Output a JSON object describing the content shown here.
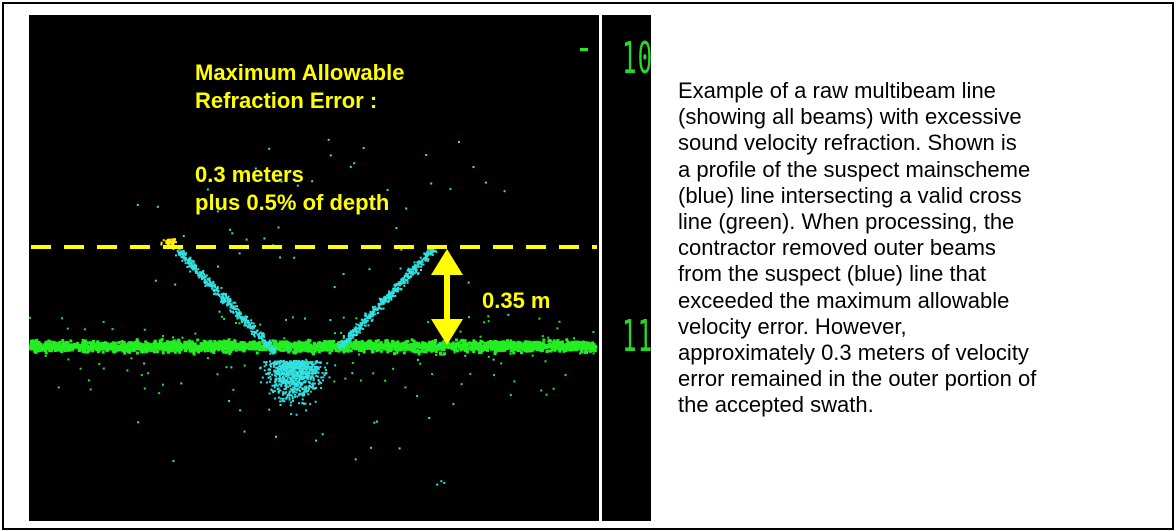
{
  "figure": {
    "title_lines": [
      "Maximum Allowable",
      "Refraction Error :"
    ],
    "spec_lines": [
      "0.3 meters",
      "plus 0.5% of depth"
    ],
    "measurement_label": "0.35 m",
    "strip_digits_top": "10",
    "strip_digits_bottom": "11"
  },
  "caption": {
    "lines": [
      "Example of a raw multibeam line",
      "(showing all beams) with excessive",
      "sound velocity refraction.  Shown is",
      "a profile of the suspect mainscheme",
      "(blue) line intersecting a valid cross",
      "line (green).  When processing, the",
      "contractor removed outer beams",
      "from the suspect (blue) line that",
      "exceeded the maximum allowable",
      "velocity error.  However,",
      "approximately 0.3 meters of velocity",
      "error remained in the outer portion of",
      "the accepted swath."
    ]
  },
  "colors": {
    "background": "#000000",
    "valid_cross_line": "#22ee22",
    "suspect_line": "#33e0e0",
    "annotation": "#ffff00",
    "outlier": "#ffee00"
  }
}
